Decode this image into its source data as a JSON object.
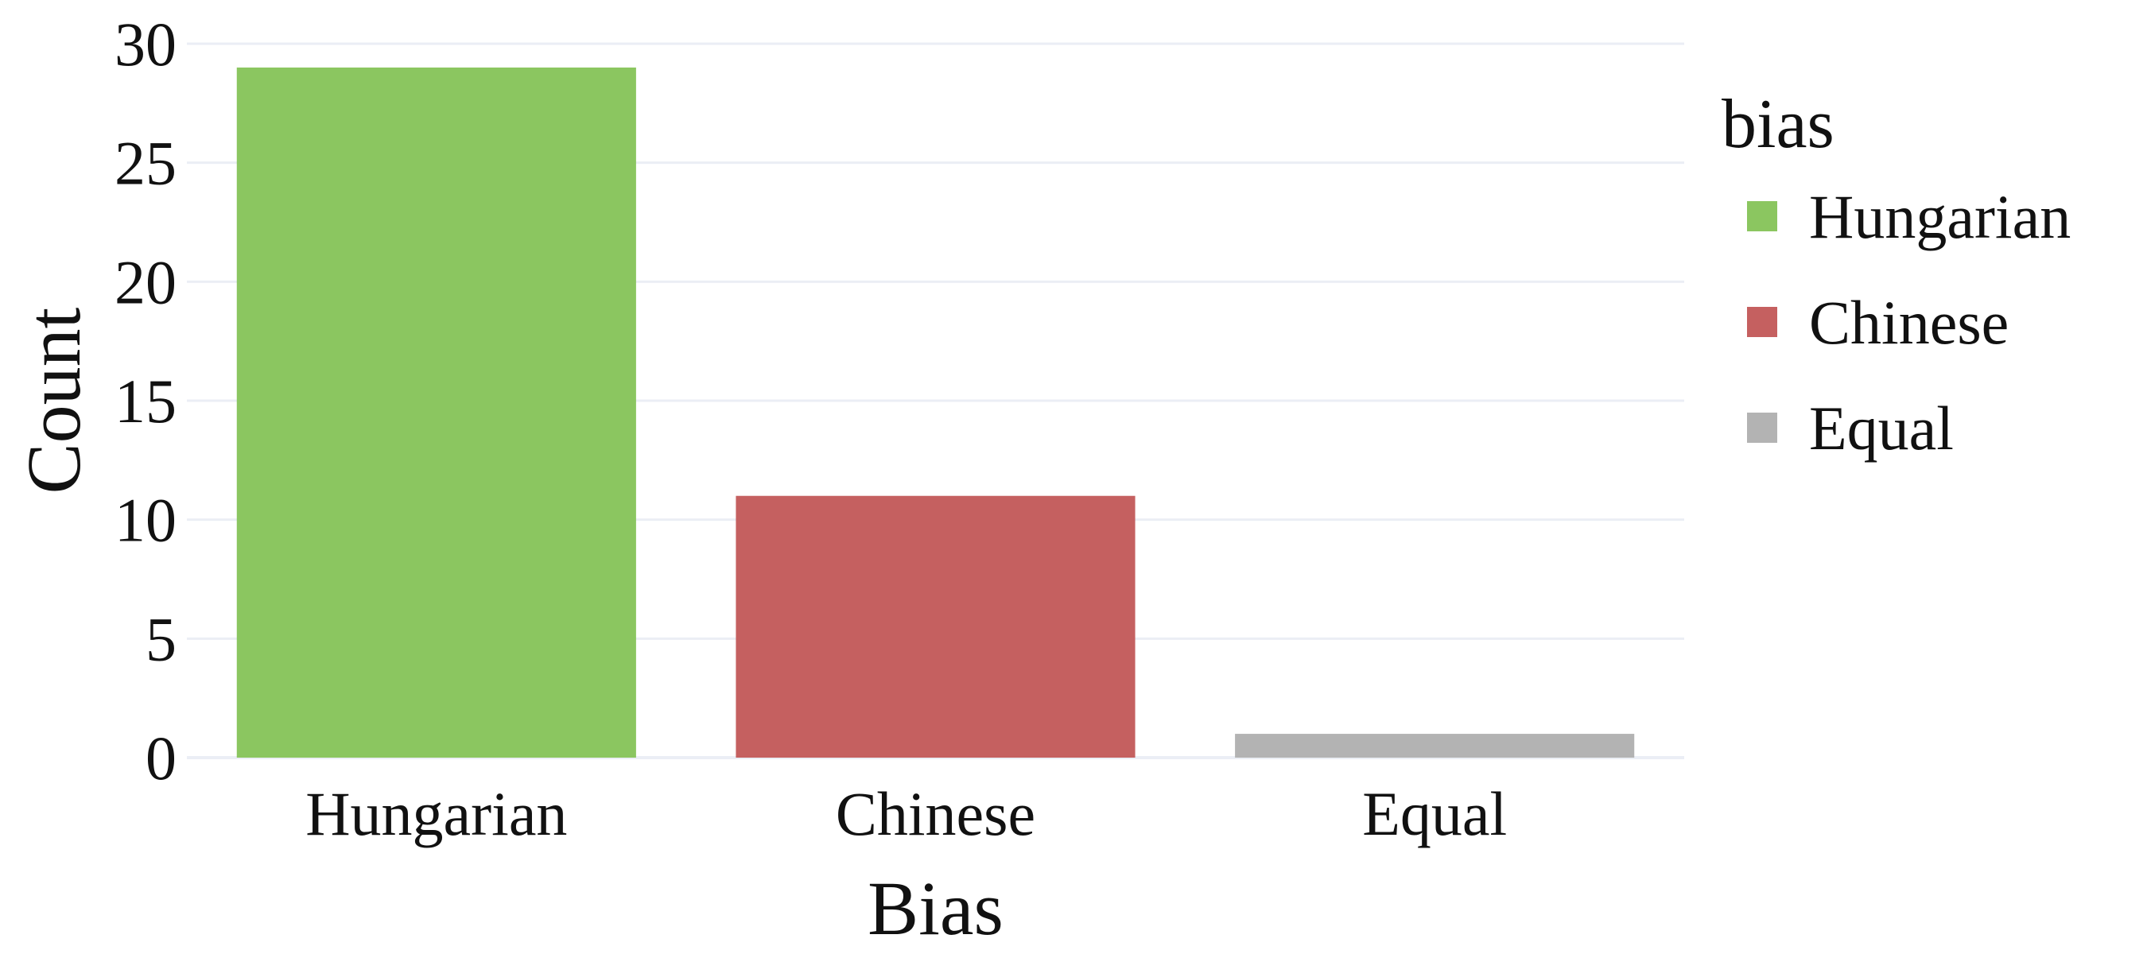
{
  "chart_data": {
    "type": "bar",
    "categories": [
      "Hungarian",
      "Chinese",
      "Equal"
    ],
    "values": [
      29,
      11,
      1
    ],
    "colors": [
      "#8bc660",
      "#c56060",
      "#b3b3b3"
    ],
    "xlabel": "Bias",
    "ylabel": "Count",
    "ylim": [
      0,
      30
    ],
    "yticks": [
      0,
      5,
      10,
      15,
      20,
      25,
      30
    ],
    "grid": true,
    "gridline_color": "#ebeef5",
    "legend": {
      "title": "bias",
      "placement": "right",
      "entries": [
        "Hungarian",
        "Chinese",
        "Equal"
      ]
    }
  }
}
